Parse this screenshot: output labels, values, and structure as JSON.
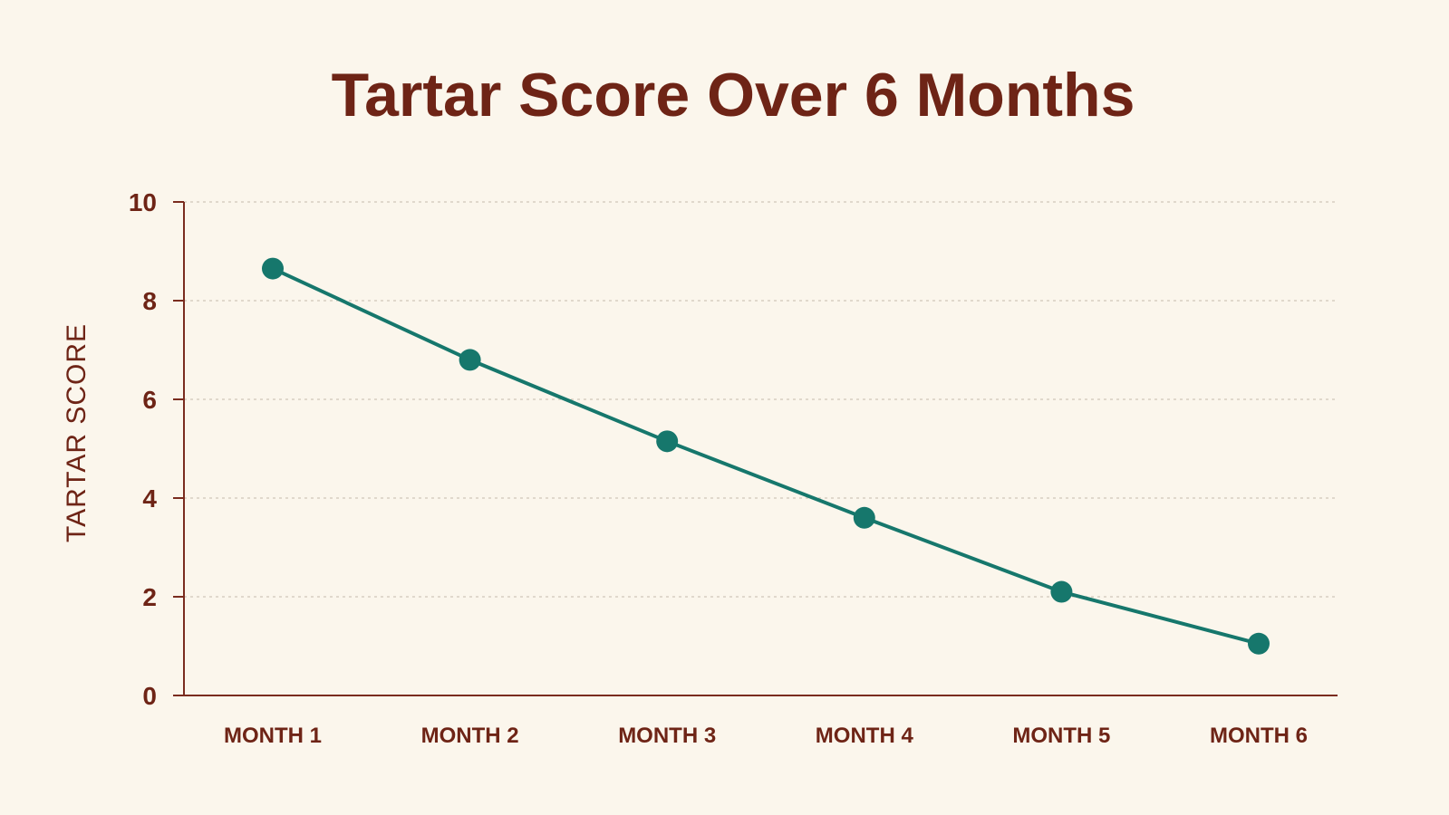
{
  "colors": {
    "background": "#fbf6ec",
    "text": "#6e2416",
    "axis": "#7a2c1f",
    "grid": "#cfc7b8",
    "series": "#16776c"
  },
  "chart_data": {
    "type": "line",
    "title": "Tartar Score Over 6 Months",
    "xlabel": "",
    "ylabel": "TARTAR SCORE",
    "categories": [
      "MONTH 1",
      "MONTH 2",
      "MONTH 3",
      "MONTH 4",
      "MONTH 5",
      "MONTH 6"
    ],
    "series": [
      {
        "values": [
          8.65,
          6.8,
          5.15,
          3.6,
          2.1,
          1.05
        ]
      }
    ],
    "ylim": [
      0,
      10
    ],
    "yticks": [
      0,
      2,
      4,
      6,
      8,
      10
    ],
    "grid": true,
    "legend": "none"
  }
}
